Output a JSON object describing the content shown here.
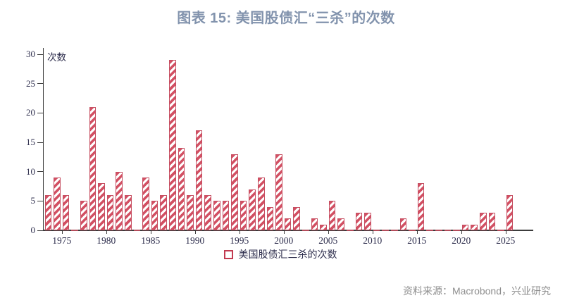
{
  "title": "图表 15: 美国股债汇“三杀”的次数",
  "footer": {
    "source": "资料来源：Macrobond，兴业研究"
  },
  "chart_data": {
    "type": "bar",
    "title": "图表 15: 美国股债汇“三杀”的次数",
    "ylabel": "次数",
    "xlabel": "",
    "ylim": [
      0,
      30
    ],
    "yticks": [
      0,
      5,
      10,
      15,
      20,
      25,
      30
    ],
    "xticks": [
      1975,
      1980,
      1985,
      1990,
      1995,
      2000,
      2005,
      2010,
      2015,
      2020,
      2025
    ],
    "grid": false,
    "legend": "美国股债汇三杀的次数",
    "legend_position": "bottom-center",
    "categories": [
      1973,
      1974,
      1975,
      1976,
      1977,
      1978,
      1979,
      1980,
      1981,
      1982,
      1983,
      1984,
      1985,
      1986,
      1987,
      1988,
      1989,
      1990,
      1991,
      1992,
      1993,
      1994,
      1995,
      1996,
      1997,
      1998,
      1999,
      2000,
      2001,
      2002,
      2003,
      2004,
      2005,
      2006,
      2007,
      2008,
      2009,
      2010,
      2011,
      2012,
      2013,
      2014,
      2015,
      2016,
      2017,
      2018,
      2019,
      2020,
      2021,
      2022,
      2023,
      2024,
      2025
    ],
    "values": [
      6,
      9,
      6,
      0,
      5,
      21,
      8,
      6,
      10,
      6,
      0,
      9,
      5,
      6,
      29,
      14,
      6,
      17,
      6,
      5,
      5,
      13,
      5,
      7,
      9,
      4,
      13,
      2,
      4,
      0,
      2,
      1,
      5,
      2,
      0,
      3,
      3,
      0,
      0,
      0,
      2,
      0,
      8,
      0,
      0,
      0,
      0,
      1,
      1,
      3,
      3,
      0,
      6
    ],
    "colors": {
      "bar_stripe": "#d25063",
      "bar_border": "#c64f62",
      "legend_marker_border": "#c23a50",
      "title": "#8293ad",
      "axis": "#3c3c3c",
      "tick_label": "#2e2e4d",
      "source_text": "#8e8e8e"
    }
  }
}
